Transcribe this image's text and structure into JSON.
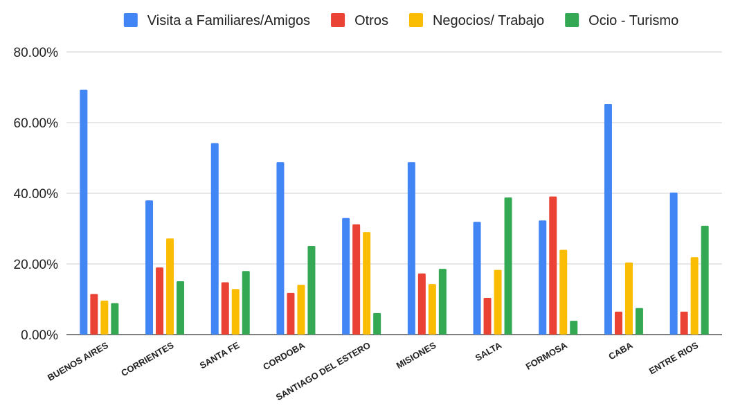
{
  "chart_data": {
    "type": "bar",
    "title": "",
    "xlabel": "",
    "ylabel": "",
    "ylim": [
      0,
      80
    ],
    "yticks": [
      "0.00%",
      "20.00%",
      "40.00%",
      "60.00%",
      "80.00%"
    ],
    "grid": true,
    "legend_position": "top",
    "categories": [
      "BUENOS AIRES",
      "CORRIENTES",
      "SANTA FE",
      "CORDOBA",
      "SANTIAGO DEL ESTERO",
      "MISIONES",
      "SALTA",
      "FORMOSA",
      "CABA",
      "ENTRE RIOS"
    ],
    "series": [
      {
        "name": "Visita a Familiares/Amigos",
        "color": "#4285f4",
        "values": [
          69.3,
          38.0,
          54.2,
          48.8,
          33.0,
          48.8,
          31.9,
          32.3,
          65.3,
          40.2
        ]
      },
      {
        "name": "Otros",
        "color": "#ea4335",
        "values": [
          11.5,
          19.0,
          14.8,
          11.8,
          31.2,
          17.3,
          10.4,
          39.1,
          6.5,
          6.5
        ]
      },
      {
        "name": "Negocios/ Trabajo",
        "color": "#fbbc04",
        "values": [
          9.6,
          27.2,
          12.9,
          14.1,
          29.0,
          14.3,
          18.3,
          24.0,
          20.4,
          21.9
        ]
      },
      {
        "name": "Ocio - Turismo",
        "color": "#34a853",
        "values": [
          8.9,
          15.1,
          18.0,
          25.1,
          6.1,
          18.6,
          38.8,
          3.9,
          7.5,
          30.8
        ]
      }
    ]
  }
}
